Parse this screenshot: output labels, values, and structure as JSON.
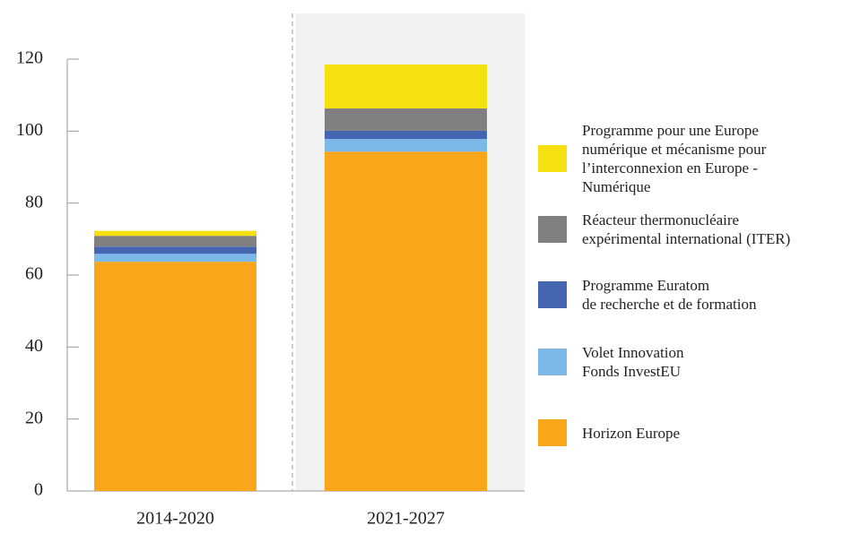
{
  "chart_data": {
    "type": "stacked_bar",
    "categories": [
      "2014-2020",
      "2021-2027"
    ],
    "series": [
      {
        "name": "Horizon Europe",
        "color": "#f9a61a",
        "values": [
          63.7,
          94.3
        ]
      },
      {
        "name": "Volet Innovation\nFonds InvestEU",
        "color": "#7db9e8",
        "values": [
          2.2,
          3.5
        ]
      },
      {
        "name": "Programme Euratom\nde recherche et de formation",
        "color": "#4466b0",
        "values": [
          2.0,
          2.3
        ]
      },
      {
        "name": "Réacteur thermonucléaire\nexpérimental international (ITER)",
        "color": "#808083",
        "values": [
          3.0,
          6.2
        ]
      },
      {
        "name": "Programme pour une Europe\nnumérique et mécanisme pour\nl’interconnexion en Europe -\nNumérique",
        "color": "#f5e10f",
        "values": [
          1.4,
          12.2
        ]
      }
    ],
    "ylim": [
      0,
      120
    ],
    "yticks": [
      0,
      20,
      40,
      60,
      80,
      100,
      120
    ]
  }
}
